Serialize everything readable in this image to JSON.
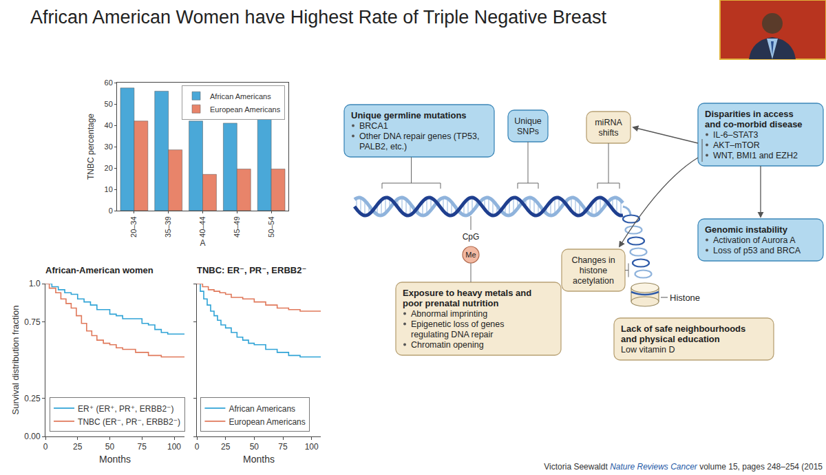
{
  "title": "African American Women have Highest Rate of Triple Negative Breast",
  "chart_data": [
    {
      "type": "bar",
      "x_label": "A",
      "y_label": "TNBC percentage",
      "categories": [
        "20–34",
        "35–39",
        "40–44",
        "45–49",
        "50–54"
      ],
      "series": [
        {
          "name": "African Americans",
          "color": "#4aa8d8",
          "values": [
            57.5,
            56,
            42,
            41,
            44
          ]
        },
        {
          "name": "European Americans",
          "color": "#e8846a",
          "values": [
            42,
            28.5,
            17,
            19.5,
            19.5
          ]
        }
      ],
      "ylim": [
        0,
        60
      ],
      "yticks": [
        0,
        10,
        20,
        30,
        40,
        50,
        60
      ],
      "legend": "top right"
    },
    {
      "type": "line",
      "title": "African-American women",
      "x_label": "Months",
      "y_label": "Survival distribution fraction",
      "line_style": "step",
      "xlim": [
        0,
        108
      ],
      "xticks": [
        0,
        25,
        50,
        75,
        100
      ],
      "ylim": [
        0,
        1
      ],
      "yticks": [
        {
          "value": 0,
          "label": "0.00"
        },
        {
          "value": 0.25,
          "label": "0.25"
        },
        {
          "value": 0.75,
          "label": "0.75"
        },
        {
          "value": 1,
          "label": "1.0"
        }
      ],
      "legend": "bottom left",
      "series": [
        {
          "name": "ER⁺ (ER⁺, PR⁺, ERBB2⁻)",
          "color": "#2fa3d6",
          "x": [
            0,
            5,
            10,
            15,
            20,
            25,
            30,
            35,
            40,
            45,
            50,
            55,
            60,
            65,
            70,
            75,
            80,
            85,
            90,
            95,
            108
          ],
          "values": [
            1.0,
            0.98,
            0.96,
            0.94,
            0.93,
            0.9,
            0.88,
            0.86,
            0.83,
            0.83,
            0.8,
            0.79,
            0.77,
            0.77,
            0.77,
            0.74,
            0.73,
            0.7,
            0.68,
            0.67,
            0.67
          ]
        },
        {
          "name": "TNBC (ER⁻, PR⁻, ERBB2⁻)",
          "color": "#e0785a",
          "x": [
            0,
            3,
            8,
            12,
            16,
            20,
            24,
            28,
            32,
            36,
            40,
            45,
            50,
            55,
            60,
            70,
            80,
            90,
            108
          ],
          "values": [
            1.0,
            0.97,
            0.94,
            0.9,
            0.87,
            0.84,
            0.79,
            0.74,
            0.69,
            0.66,
            0.63,
            0.61,
            0.6,
            0.58,
            0.57,
            0.55,
            0.53,
            0.52,
            0.52
          ]
        }
      ]
    },
    {
      "type": "line",
      "title": "TNBC: ER⁻, PR⁻, ERBB2⁻",
      "x_label": "Months",
      "line_style": "step",
      "tick_labels": "x",
      "xlim": [
        0,
        108
      ],
      "xticks": [
        0,
        25,
        50,
        75,
        100
      ],
      "ylim": [
        0,
        1
      ],
      "yticks": [
        0,
        0.25,
        0.75,
        1
      ],
      "legend": "bottom left",
      "series": [
        {
          "name": "African Americans",
          "color": "#2fa3d6",
          "x": [
            0,
            3,
            6,
            9,
            12,
            15,
            18,
            21,
            25,
            30,
            35,
            40,
            45,
            50,
            60,
            70,
            80,
            90,
            108
          ],
          "values": [
            1.0,
            0.95,
            0.9,
            0.86,
            0.82,
            0.79,
            0.76,
            0.73,
            0.71,
            0.68,
            0.65,
            0.63,
            0.61,
            0.6,
            0.57,
            0.55,
            0.53,
            0.52,
            0.52
          ]
        },
        {
          "name": "European Americans",
          "color": "#e0785a",
          "x": [
            0,
            5,
            10,
            15,
            20,
            25,
            30,
            40,
            50,
            60,
            70,
            80,
            90,
            108
          ],
          "values": [
            1.0,
            0.98,
            0.96,
            0.95,
            0.94,
            0.93,
            0.91,
            0.9,
            0.88,
            0.86,
            0.84,
            0.83,
            0.82,
            0.82
          ]
        }
      ]
    }
  ],
  "diagram": {
    "germline": {
      "title": "Unique germline mutations",
      "items": [
        "BRCA1",
        "Other DNA repair genes (TP53, PALB2, etc.)"
      ]
    },
    "snps": {
      "title": "Unique SNPs"
    },
    "mirna": {
      "title": "miRNA shifts"
    },
    "disparities": {
      "title": "Disparities in access and co-morbid disease",
      "items": [
        "IL-6–STAT3",
        "AKT–mTOR",
        "WNT, BMI1 and EZH2"
      ]
    },
    "instability": {
      "title": "Genomic instability",
      "items": [
        "Activation of Aurora A",
        "Loss of p53 and BRCA"
      ]
    },
    "cpg": "CpG",
    "methyl": "Me",
    "exposure": {
      "title": "Exposure to heavy metals and poor prenatal nutrition",
      "items": [
        "Abnormal imprinting",
        "Epigenetic loss of genes regulating DNA repair",
        "Chromatin opening"
      ]
    },
    "acetylation": {
      "title": "Changes in histone acetylation"
    },
    "histone": "Histone",
    "environment": {
      "title": "Lack of safe neighbourhoods and physical education",
      "items": [
        "Low vitamin D"
      ]
    }
  },
  "citation": {
    "author": "Victoria Seewaldt",
    "journal": "Nature Reviews Cancer",
    "details": "volume 15, pages 248–254 (2015"
  }
}
